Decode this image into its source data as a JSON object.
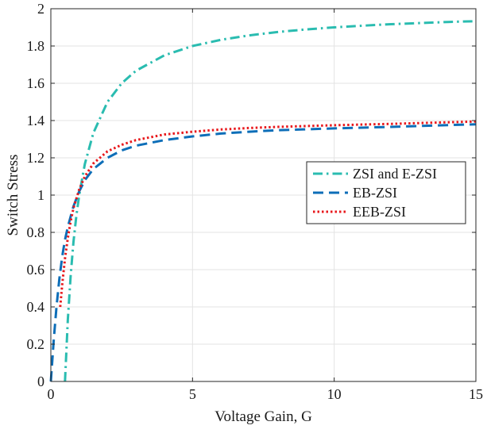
{
  "chart_data": {
    "type": "line",
    "title": "",
    "xlabel": "Voltage Gain, G",
    "ylabel": "Switch Stress",
    "xlim": [
      0,
      15
    ],
    "ylim": [
      0,
      2
    ],
    "xticks": [
      0,
      5,
      10,
      15
    ],
    "yticks": [
      0,
      0.2,
      0.4,
      0.6,
      0.8,
      1,
      1.2,
      1.4,
      1.6,
      1.8,
      2
    ],
    "xtick_labels": [
      "0",
      "5",
      "10",
      "15"
    ],
    "ytick_labels": [
      "0",
      "0.2",
      "0.4",
      "0.6",
      "0.8",
      "1",
      "1.2",
      "1.4",
      "1.6",
      "1.8",
      "2"
    ],
    "grid": true,
    "legend_position": "right",
    "series": [
      {
        "name": "ZSI and E-ZSI",
        "color": "#2ABCB0",
        "style": "dash-dot",
        "x": [
          0.5,
          0.6,
          0.7,
          0.8,
          0.9,
          1.0,
          1.2,
          1.5,
          2.0,
          2.5,
          3.0,
          4.0,
          5.0,
          6.0,
          7.0,
          8.0,
          9.0,
          10.0,
          11.0,
          12.0,
          13.0,
          14.0,
          15.0
        ],
        "values": [
          0.0,
          0.333,
          0.571,
          0.75,
          0.889,
          1.0,
          1.167,
          1.333,
          1.5,
          1.6,
          1.667,
          1.75,
          1.8,
          1.833,
          1.857,
          1.875,
          1.889,
          1.9,
          1.909,
          1.917,
          1.923,
          1.929,
          1.933
        ]
      },
      {
        "name": "EB-ZSI",
        "color": "#0D6EB8",
        "style": "dash",
        "x": [
          0.0,
          0.1,
          0.2,
          0.3,
          0.4,
          0.5,
          0.6,
          0.8,
          1.0,
          1.2,
          1.5,
          2.0,
          2.5,
          3.0,
          4.0,
          5.0,
          6.0,
          7.0,
          8.0,
          10.0,
          12.0,
          15.0
        ],
        "values": [
          0.0,
          0.22,
          0.4,
          0.55,
          0.67,
          0.76,
          0.83,
          0.94,
          1.02,
          1.08,
          1.14,
          1.2,
          1.24,
          1.265,
          1.295,
          1.315,
          1.33,
          1.34,
          1.348,
          1.358,
          1.366,
          1.38
        ]
      },
      {
        "name": "EEB-ZSI",
        "color": "#E8181C",
        "style": "dot",
        "x": [
          0.33,
          0.4,
          0.5,
          0.6,
          0.7,
          0.8,
          0.9,
          1.0,
          1.2,
          1.5,
          2.0,
          2.5,
          3.0,
          4.0,
          5.0,
          6.0,
          7.0,
          8.0,
          10.0,
          12.0,
          15.0
        ],
        "values": [
          0.4,
          0.52,
          0.66,
          0.77,
          0.86,
          0.93,
          0.98,
          1.03,
          1.1,
          1.17,
          1.235,
          1.27,
          1.295,
          1.325,
          1.34,
          1.352,
          1.36,
          1.366,
          1.375,
          1.382,
          1.395
        ]
      }
    ]
  }
}
